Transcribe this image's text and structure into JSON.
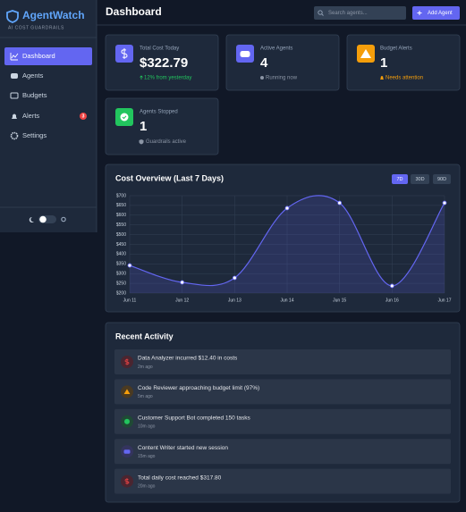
{
  "brand": {
    "name": "AgentWatch",
    "tagline": "AI COST GUARDRAILS"
  },
  "nav": {
    "items": [
      "Dashboard",
      "Agents",
      "Budgets",
      "Alerts",
      "Settings"
    ],
    "alerts_badge": 3
  },
  "header": {
    "title": "Dashboard",
    "search_placeholder": "Search agents...",
    "button": "Add Agent"
  },
  "stats": [
    {
      "label": "Total Cost Today",
      "value": "$322.79",
      "note": "12% from yesterday"
    },
    {
      "label": "Active Agents",
      "value": 4,
      "note": "Running now"
    },
    {
      "label": "Budget Alerts",
      "value": 1,
      "note": "Needs attention"
    },
    {
      "label": "Agents Stopped",
      "value": 1,
      "note": "Guardrails active"
    }
  ],
  "range_buttons": [
    "7D",
    "30D",
    "90D"
  ],
  "chart_data": {
    "type": "line",
    "title": "Cost Overview (Last 7 Days)",
    "categories": [
      "Jun 11",
      "Jun 12",
      "Jun 13",
      "Jun 14",
      "Jun 15",
      "Jun 16",
      "Jun 17"
    ],
    "values": [
      342,
      255,
      278,
      636,
      663,
      237,
      663
    ],
    "color": "#6366f1",
    "ylim": [
      200,
      700
    ],
    "yticks": [
      {
        "value": 200,
        "label": "$200"
      },
      {
        "value": 250,
        "label": "$250"
      },
      {
        "value": 300,
        "label": "$300"
      },
      {
        "value": 350,
        "label": "$350"
      },
      {
        "value": 400,
        "label": "$400"
      },
      {
        "value": 450,
        "label": "$450"
      },
      {
        "value": 500,
        "label": "$500"
      },
      {
        "value": 550,
        "label": "$550"
      },
      {
        "value": 600,
        "label": "$600"
      },
      {
        "value": 650,
        "label": "$650"
      },
      {
        "value": 700,
        "label": "$700"
      }
    ],
    "grid": true
  },
  "activity": {
    "title": "Recent Activity",
    "items": [
      {
        "text": "Data Analyzer incurred $12.40 in costs",
        "time": "2m ago"
      },
      {
        "text": "Code Reviewer approaching budget limit (97%)",
        "time": "5m ago"
      },
      {
        "text": "Customer Support Bot completed 150 tasks",
        "time": "10m ago"
      },
      {
        "text": "Content Writer started new session",
        "time": "15m ago"
      },
      {
        "text": "Total daily cost reached $317.80",
        "time": "20m ago"
      }
    ]
  }
}
